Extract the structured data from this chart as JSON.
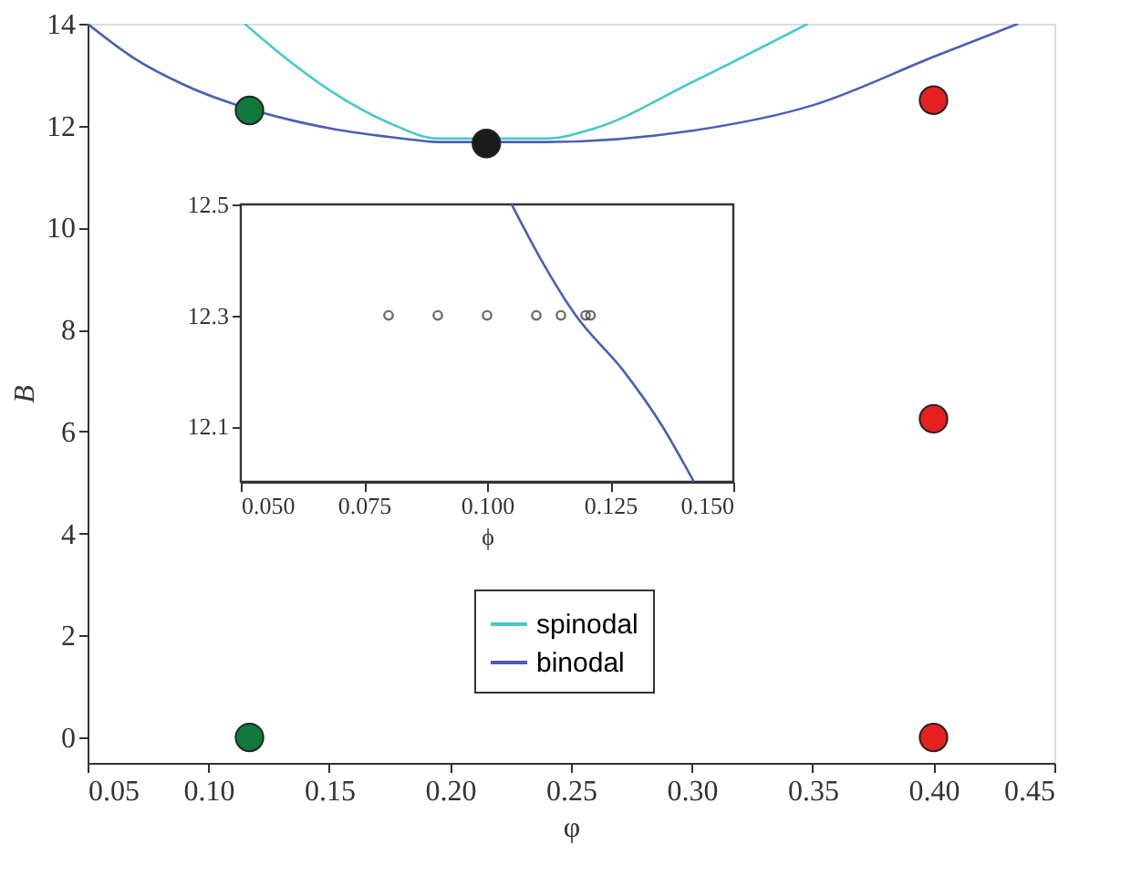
{
  "chart_data": [
    {
      "type": "line",
      "xlabel": "φ",
      "ylabel": "B",
      "xlim": [
        0.05,
        0.45
      ],
      "ylim": [
        -0.5,
        14
      ],
      "xticks": [
        {
          "value": 0.05,
          "label": "0.05"
        },
        {
          "value": 0.1,
          "label": "0.10"
        },
        {
          "value": 0.15,
          "label": "0.15"
        },
        {
          "value": 0.2,
          "label": "0.20"
        },
        {
          "value": 0.25,
          "label": "0.25"
        },
        {
          "value": 0.3,
          "label": "0.30"
        },
        {
          "value": 0.35,
          "label": "0.35"
        },
        {
          "value": 0.4,
          "label": "0.40"
        },
        {
          "value": 0.45,
          "label": "0.45"
        }
      ],
      "yticks": [
        0,
        2,
        4,
        6,
        8,
        10,
        12,
        14
      ],
      "grid": false,
      "legend": "bottom",
      "line_style": "solid",
      "series": [
        {
          "name": "spinodal",
          "color": "#45c9c9",
          "x": [
            0.115,
            0.13,
            0.15,
            0.175,
            0.195,
            0.24,
            0.26,
            0.3,
            0.348
          ],
          "values": [
            14.0,
            13.4,
            12.7,
            12.05,
            11.75,
            11.75,
            11.95,
            12.85,
            14.0
          ]
        },
        {
          "name": "binodal",
          "color": "#4a5fb5",
          "x": [
            0.05,
            0.07,
            0.09,
            0.135,
            0.15,
            0.18,
            0.195,
            0.24,
            0.3,
            0.35,
            0.4,
            0.435
          ],
          "values": [
            14.0,
            13.3,
            12.8,
            12.1,
            11.95,
            11.75,
            11.68,
            11.68,
            11.9,
            12.4,
            13.35,
            14.0
          ]
        },
        {
          "type": "scatter",
          "marker": "circle",
          "x": [
            0.117,
            0.117,
            0.215,
            0.4,
            0.4,
            0.4
          ],
          "values": [
            12.3,
            0.0,
            11.65,
            12.5,
            6.25,
            0.0
          ],
          "colors": [
            "#117a3a",
            "#117a3a",
            "#1a1a1a",
            "#e52020",
            "#e52020",
            "#e52020"
          ]
        }
      ]
    },
    {
      "type": "line",
      "xlabel": "ϕ",
      "xlim": [
        0.05,
        0.15
      ],
      "ylim": [
        12.0,
        12.5
      ],
      "xticks": [
        {
          "value": 0.05,
          "label": "0.050"
        },
        {
          "value": 0.075,
          "label": "0.075"
        },
        {
          "value": 0.1,
          "label": "0.100"
        },
        {
          "value": 0.125,
          "label": "0.125"
        },
        {
          "value": 0.15,
          "label": "0.150"
        }
      ],
      "yticks": [
        12.1,
        12.3,
        12.5
      ],
      "grid": false,
      "line_style": "solid",
      "series": [
        {
          "color": "#4a5fb5",
          "x": [
            0.105,
            0.111,
            0.118,
            0.1277,
            0.1356,
            0.142
          ],
          "values": [
            12.5,
            12.4,
            12.3,
            12.2,
            12.1,
            12.0
          ]
        },
        {
          "type": "scatter",
          "marker": "circle",
          "x": [
            0.08,
            0.09,
            0.1,
            0.11,
            0.115,
            0.12,
            0.121
          ],
          "values": [
            12.3,
            12.3,
            12.3,
            12.3,
            12.3,
            12.3,
            12.3
          ],
          "colors": [
            "#333333",
            "#333333",
            "#333333",
            "#333333",
            "#333333",
            "#333333",
            "#333333"
          ]
        }
      ]
    }
  ]
}
